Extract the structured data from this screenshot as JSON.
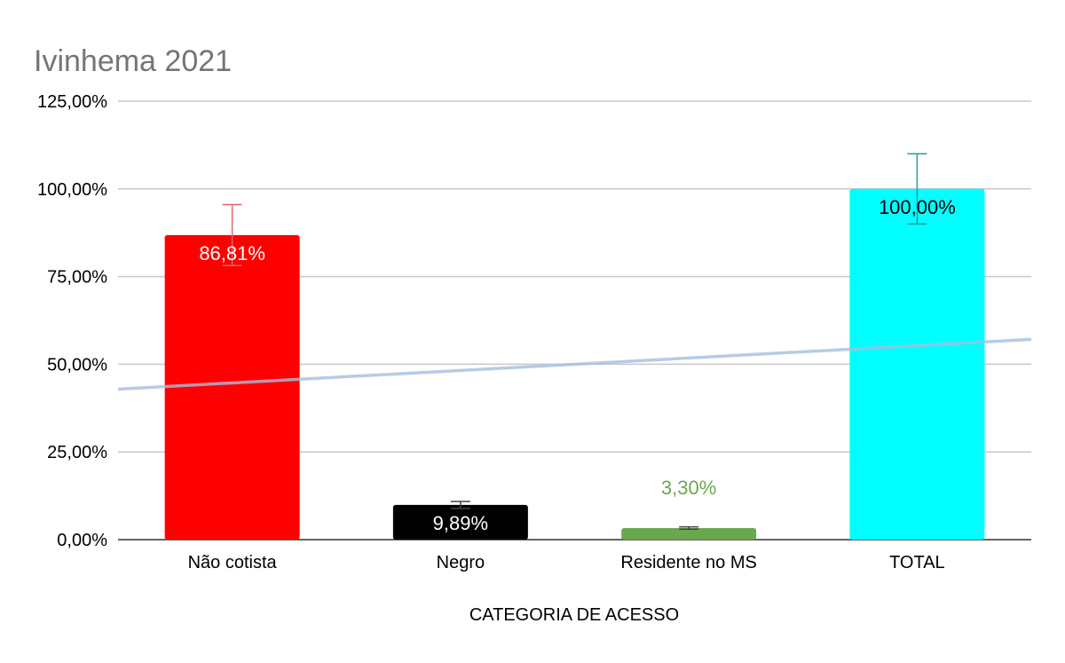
{
  "chart_data": {
    "type": "bar",
    "title": "Ivinhema 2021",
    "xlabel": "CATEGORIA DE ACESSO",
    "ylabel": "",
    "ylim": [
      0,
      125
    ],
    "yticks": [
      0,
      25,
      50,
      75,
      100,
      125
    ],
    "ytick_labels": [
      "0,00%",
      "25,00%",
      "50,00%",
      "75,00%",
      "100,00%",
      "125,00%"
    ],
    "grid": true,
    "categories": [
      "Não cotista",
      "Negro",
      "Residente no MS",
      "TOTAL"
    ],
    "values": [
      86.81,
      9.89,
      3.3,
      100.0
    ],
    "data_labels": [
      "86,81%",
      "9,89%",
      "3,30%",
      "100,00%"
    ],
    "bar_colors": [
      "#ff0000",
      "#000000",
      "#6aa84f",
      "#00ffff"
    ],
    "label_colors": [
      "#ffffff",
      "#ffffff",
      "#6aa84f",
      "#000000"
    ],
    "label_position": [
      "inside",
      "inside",
      "above",
      "inside"
    ],
    "error_bars": [
      8.7,
      1.0,
      0.33,
      10.0
    ],
    "error_bar_colors": [
      "#e06666",
      "#444444",
      "#444444",
      "#1aa3a3"
    ],
    "trendline": {
      "type": "linear",
      "start": 42.9,
      "end": 57.1,
      "color": "#a4bfdd"
    }
  }
}
